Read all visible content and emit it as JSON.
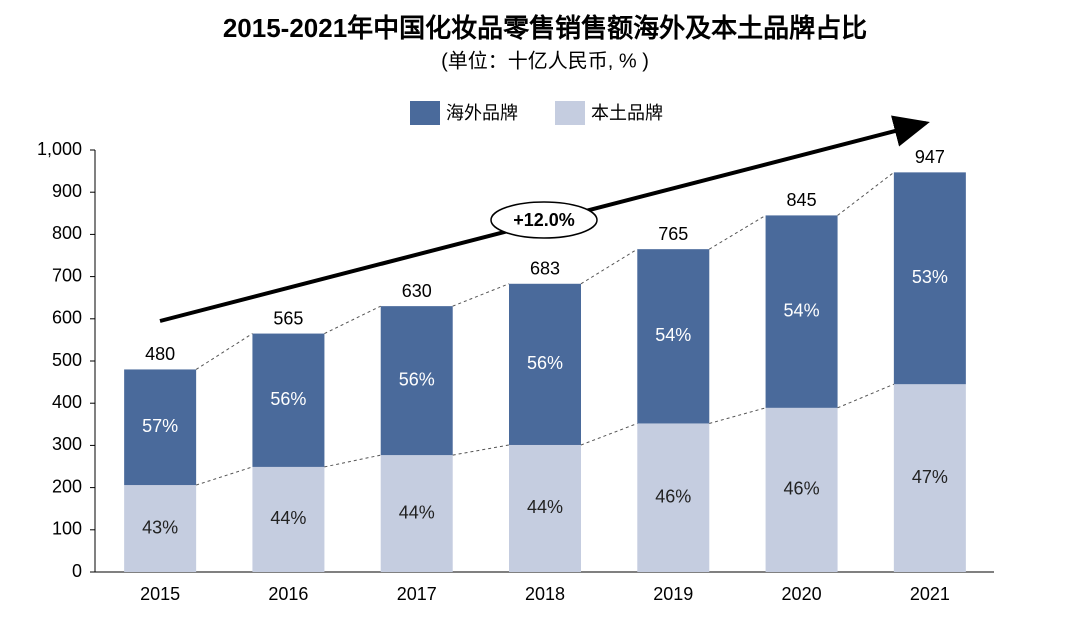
{
  "chart_data": {
    "type": "stacked_bar",
    "title": "2015-2021年中国化妆品零售销售额海外及本土品牌占比",
    "subtitle": "(单位：十亿人民币, % )",
    "annotation": "+12.0%",
    "categories": [
      "2015",
      "2016",
      "2017",
      "2018",
      "2019",
      "2020",
      "2021"
    ],
    "series": [
      {
        "name": "本土品牌",
        "color": "#c5cde0",
        "values": [
          206,
          249,
          277,
          301,
          352,
          389,
          445
        ],
        "percent_values": [
          43,
          44,
          44,
          44,
          46,
          46,
          47
        ],
        "percent_labels": [
          "43%",
          "44%",
          "44%",
          "44%",
          "46%",
          "46%",
          "47%"
        ]
      },
      {
        "name": "海外品牌",
        "color": "#4a6a9b",
        "values": [
          274,
          316,
          353,
          382,
          413,
          456,
          502
        ],
        "percent_values": [
          57,
          56,
          56,
          56,
          54,
          54,
          53
        ],
        "percent_labels": [
          "57%",
          "56%",
          "56%",
          "56%",
          "54%",
          "54%",
          "53%"
        ]
      }
    ],
    "totals": [
      480,
      565,
      630,
      683,
      765,
      845,
      947
    ],
    "ylim": [
      0,
      1000
    ],
    "yticks": [
      0,
      100,
      200,
      300,
      400,
      500,
      600,
      700,
      800,
      900,
      {
        "value": 1000,
        "label": "1,000"
      }
    ],
    "legend": "top"
  }
}
